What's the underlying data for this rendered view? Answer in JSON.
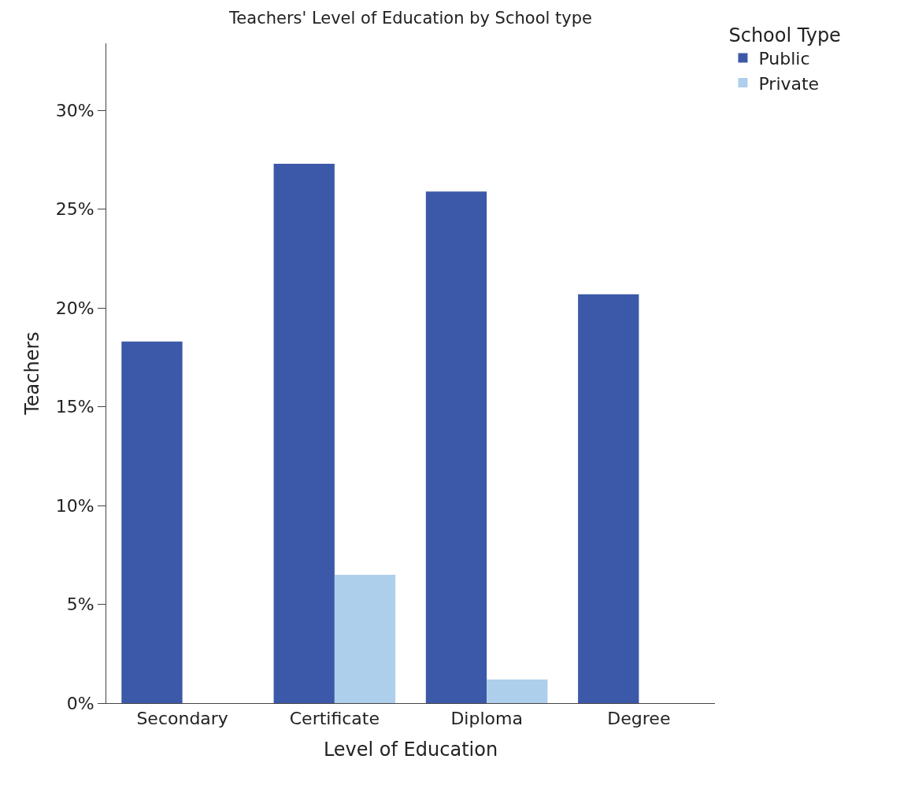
{
  "chart_data": {
    "type": "bar",
    "title": "Teachers' Level of Education by School type",
    "xlabel": "Level of Education",
    "ylabel": "Teachers",
    "legend_title": "School Type",
    "categories": [
      "Secondary",
      "Certificate",
      "Diploma",
      "Degree"
    ],
    "series": [
      {
        "name": "Public",
        "color": "#3c58a8",
        "values": [
          18.3,
          27.3,
          25.9,
          20.7
        ]
      },
      {
        "name": "Private",
        "color": "#aecfec",
        "values": [
          0,
          6.5,
          1.2,
          0
        ]
      }
    ],
    "ylim": [
      0,
      33.4
    ],
    "yticks": [
      {
        "value": 0,
        "label": "0%"
      },
      {
        "value": 5,
        "label": "5%"
      },
      {
        "value": 10,
        "label": "10%"
      },
      {
        "value": 15,
        "label": "15%"
      },
      {
        "value": 20,
        "label": "20%"
      },
      {
        "value": 25,
        "label": "25%"
      },
      {
        "value": 30,
        "label": "30%"
      }
    ],
    "grid": false,
    "legend": "top right"
  }
}
